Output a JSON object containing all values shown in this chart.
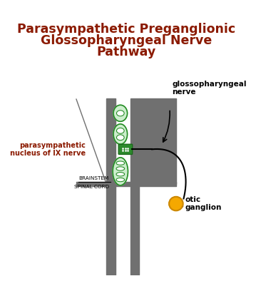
{
  "title_line1": "Parasympathetic Preganglionic",
  "title_line2": "Glossopharyngeal Nerve",
  "title_line3": "Pathway",
  "title_color": "#8B1A00",
  "bg_color": "#FFFFFF",
  "spine_color": "#707070",
  "nerve_fill": "#CCEECC",
  "nerve_border": "#228B22",
  "nucleus_fill": "#2d8a2d",
  "nucleus_border": "#1a6b1a",
  "ganglion_fill": "#F5A800",
  "ganglion_border": "#cc8800",
  "label_parasympathetic": "parasympathetic\nnucleus of IX nerve",
  "label_glossopharyngeal": "glossopharyngeal\nnerve",
  "label_otic": "otic\nganglion",
  "label_brainstem": "BRAINSTEM",
  "label_spinalcord": "SPINAL CORD",
  "label_color_red": "#8B1A00",
  "figw": 3.59,
  "figh": 4.08,
  "dpi": 100
}
